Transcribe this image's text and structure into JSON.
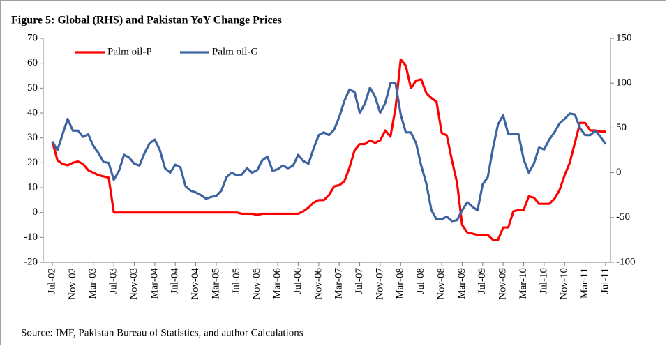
{
  "chart_data": {
    "type": "line",
    "title": "Figure 5: Global (RHS) and Pakistan YoY Change Prices",
    "source": "Source:  IMF, Pakistan Bureau of Statistics,  and author Calculations",
    "legend": "upper left",
    "categories": [
      "Jul-02",
      null,
      null,
      null,
      "Nov-02",
      null,
      null,
      null,
      "Mar-03",
      null,
      null,
      null,
      "Jul-03",
      null,
      null,
      null,
      "Nov-03",
      null,
      null,
      null,
      "Mar-04",
      null,
      null,
      null,
      "Jul-04",
      null,
      null,
      null,
      "Nov-04",
      null,
      null,
      null,
      "Mar-05",
      null,
      null,
      null,
      "Jul-05",
      null,
      null,
      null,
      "Nov-05",
      null,
      null,
      null,
      "Mar-06",
      null,
      null,
      null,
      "Jul-06",
      null,
      null,
      null,
      "Nov-06",
      null,
      null,
      null,
      "Mar-07",
      null,
      null,
      null,
      "Jul-07",
      null,
      null,
      null,
      "Nov-07",
      null,
      null,
      null,
      "Mar-08",
      null,
      null,
      null,
      "Jul-08",
      null,
      null,
      null,
      "Nov-08",
      null,
      null,
      null,
      "Mar-09",
      null,
      null,
      null,
      "Jul-09",
      null,
      null,
      null,
      "Nov-09",
      null,
      null,
      null,
      "Mar-10",
      null,
      null,
      null,
      "Jul-10",
      null,
      null,
      null,
      "Nov-10",
      null,
      null,
      null,
      "Mar-11",
      null,
      null,
      null,
      "Jul-11"
    ],
    "series": [
      {
        "name": "Palm oil-P",
        "color": "#ff0000",
        "axis": "y",
        "values": [
          28.5,
          21,
          19.5,
          19,
          20,
          20.5,
          19.5,
          17,
          16,
          15,
          14.5,
          14,
          0,
          0,
          0,
          0,
          0,
          0,
          0,
          0,
          0,
          0,
          0,
          0,
          0,
          0,
          0,
          0,
          0,
          0,
          0,
          0,
          0,
          0,
          0,
          0,
          0,
          -0.5,
          -0.5,
          -0.5,
          -1,
          -0.5,
          -0.5,
          -0.5,
          -0.5,
          -0.5,
          -0.5,
          -0.5,
          -0.5,
          0.5,
          2,
          4,
          5,
          5,
          7,
          10.5,
          11,
          12.5,
          18,
          25,
          27.5,
          27.5,
          29,
          28,
          29,
          33,
          30.5,
          42,
          61.5,
          59,
          50,
          53,
          53.5,
          48,
          46,
          44.5,
          32,
          31,
          21,
          12,
          -5,
          -8,
          -8.5,
          -9,
          -9,
          -9,
          -11,
          -11,
          -6,
          -6,
          0.5,
          1,
          1,
          6.5,
          6,
          3.5,
          3.5,
          3.5,
          5.5,
          9,
          15,
          20,
          28,
          36,
          36,
          33,
          33,
          32.5,
          32.5
        ]
      },
      {
        "name": "Palm oil-G",
        "color": "#3d64a0",
        "axis": "y2",
        "values": [
          35,
          25,
          43,
          60,
          47,
          47,
          40,
          43,
          30,
          22,
          12,
          11,
          -8,
          2,
          20,
          17,
          10,
          8,
          22,
          33,
          37,
          25,
          5,
          0,
          9,
          6,
          -15,
          -20,
          -22,
          -25,
          -29,
          -27,
          -26,
          -20,
          -5,
          0,
          -3,
          -2,
          5,
          0,
          3,
          14,
          18,
          2,
          4,
          8,
          5,
          8,
          20,
          13,
          10,
          27,
          42,
          45,
          42,
          48,
          62,
          80,
          93,
          90,
          67,
          77,
          95,
          85,
          67,
          78,
          100,
          100,
          65,
          45,
          45,
          33,
          8,
          -12,
          -42,
          -52,
          -52,
          -49,
          -54,
          -53,
          -42,
          -33,
          -38,
          -42,
          -13,
          -5,
          27,
          54,
          64,
          43,
          43,
          43,
          15,
          0,
          10,
          28,
          26,
          37,
          45,
          55,
          60,
          66,
          65,
          50,
          42,
          42,
          47,
          40,
          32
        ]
      }
    ],
    "ylim": [
      -20,
      70
    ],
    "yticks": [
      -20,
      -10,
      0,
      10,
      20,
      30,
      40,
      50,
      60,
      70
    ],
    "y2lim": [
      -100,
      150
    ],
    "y2ticks": [
      -100,
      -50,
      0,
      50,
      100,
      150
    ]
  }
}
